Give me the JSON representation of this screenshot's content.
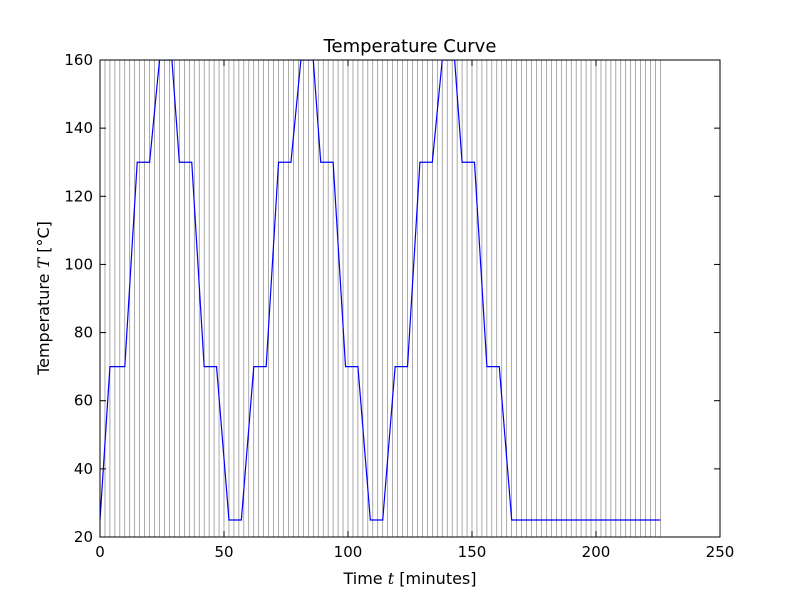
{
  "chart_data": {
    "type": "line",
    "title": "Temperature Curve",
    "xlabel": {
      "pre": "Time ",
      "var": "t",
      "post": " [minutes]"
    },
    "ylabel": {
      "pre": "Temperature ",
      "var": "T",
      "post": " [°C]"
    },
    "xlim": [
      0,
      250
    ],
    "ylim": [
      20,
      160
    ],
    "xticks": [
      0,
      50,
      100,
      150,
      200,
      250
    ],
    "yticks": [
      20,
      40,
      60,
      80,
      100,
      120,
      140,
      160
    ],
    "grid": false,
    "sample_lines": {
      "start": 0,
      "end": 226,
      "step": 2,
      "color": "#000000"
    },
    "series": [
      {
        "color": "#0000ff",
        "x": [
          0,
          4,
          10,
          15,
          20,
          24,
          29,
          32,
          37,
          42,
          47,
          52,
          57,
          62,
          67,
          72,
          77,
          81,
          86,
          89,
          94,
          99,
          104,
          109,
          114,
          119,
          124,
          129,
          134,
          138,
          143,
          146,
          151,
          156,
          161,
          166,
          226
        ],
        "y": [
          25,
          70,
          70,
          130,
          130,
          160,
          160,
          130,
          130,
          70,
          70,
          25,
          25,
          70,
          70,
          130,
          130,
          160,
          160,
          130,
          130,
          70,
          70,
          25,
          25,
          70,
          70,
          130,
          130,
          160,
          160,
          130,
          130,
          70,
          70,
          25,
          25
        ]
      }
    ]
  }
}
